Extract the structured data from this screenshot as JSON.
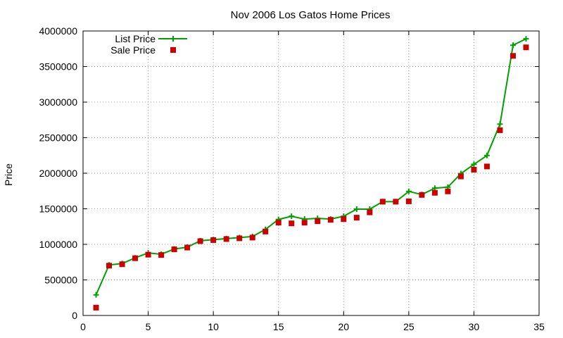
{
  "chart_data": {
    "type": "line",
    "title": "Nov 2006 Los Gatos Home Prices",
    "xlabel": "",
    "ylabel": "Price",
    "xlim": [
      0,
      35
    ],
    "ylim": [
      0,
      4000000
    ],
    "xticks": [
      0,
      5,
      10,
      15,
      20,
      25,
      30,
      35
    ],
    "yticks": [
      0,
      500000,
      1000000,
      1500000,
      2000000,
      2500000,
      3000000,
      3500000,
      4000000
    ],
    "xtick_labels": [
      "0",
      "5",
      "10",
      "15",
      "20",
      "25",
      "30",
      "35"
    ],
    "ytick_labels": [
      "0",
      "500000",
      "1000000",
      "1500000",
      "2000000",
      "2500000",
      "3000000",
      "3500000",
      "4000000"
    ],
    "grid": true,
    "legend_position": "top-left",
    "series": [
      {
        "name": "List Price",
        "style": "line-plus",
        "color": "#00a000",
        "x": [
          1,
          2,
          3,
          4,
          5,
          6,
          7,
          8,
          9,
          10,
          11,
          12,
          13,
          14,
          15,
          16,
          17,
          18,
          19,
          20,
          21,
          22,
          23,
          24,
          25,
          26,
          27,
          28,
          29,
          30,
          31,
          32,
          33,
          34
        ],
        "values": [
          290000,
          710000,
          730000,
          810000,
          880000,
          860000,
          935000,
          960000,
          1050000,
          1065000,
          1080000,
          1095000,
          1110000,
          1210000,
          1350000,
          1395000,
          1355000,
          1365000,
          1355000,
          1395000,
          1495000,
          1495000,
          1600000,
          1600000,
          1745000,
          1700000,
          1790000,
          1805000,
          1995000,
          2125000,
          2250000,
          2690000,
          3800000,
          3890000
        ]
      },
      {
        "name": "Sale Price",
        "style": "square",
        "color": "#cc0000",
        "x": [
          1,
          2,
          3,
          4,
          5,
          6,
          7,
          8,
          9,
          10,
          11,
          12,
          13,
          14,
          15,
          16,
          17,
          18,
          19,
          20,
          21,
          22,
          23,
          24,
          25,
          26,
          27,
          28,
          29,
          30,
          31,
          32,
          33,
          34
        ],
        "values": [
          110000,
          700000,
          720000,
          805000,
          855000,
          850000,
          930000,
          955000,
          1045000,
          1060000,
          1075000,
          1085000,
          1095000,
          1180000,
          1305000,
          1295000,
          1305000,
          1325000,
          1345000,
          1355000,
          1375000,
          1450000,
          1600000,
          1600000,
          1605000,
          1695000,
          1725000,
          1745000,
          1955000,
          2050000,
          2095000,
          2605000,
          3650000,
          3770000
        ]
      }
    ]
  }
}
